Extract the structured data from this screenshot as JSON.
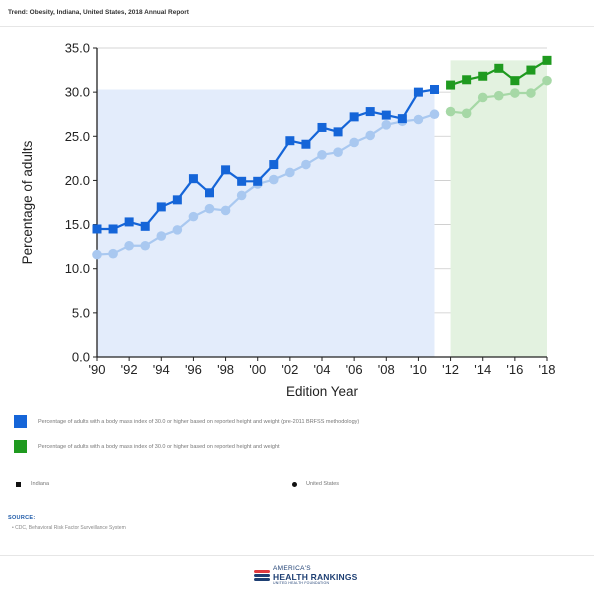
{
  "header": {
    "title": "Trend: Obesity, Indiana, United States, 2018 Annual Report"
  },
  "colors": {
    "blue": "#1565d8",
    "blue_light": "#a9c8f0",
    "blue_fill": "#e3ecfb",
    "green": "#1f9a1f",
    "green_light": "#a6d8a6",
    "green_fill": "#e3f2e0"
  },
  "chart_data": {
    "type": "line",
    "xlabel": "Edition Year",
    "ylabel": "Percentage of adults",
    "ylim": [
      0,
      35
    ],
    "y_ticks": [
      "0.0",
      "5.0",
      "10.0",
      "15.0",
      "20.0",
      "25.0",
      "30.0",
      "35.0"
    ],
    "x_tick_labels": [
      {
        "year": 1990,
        "label": "'90"
      },
      {
        "year": 1992,
        "label": "'92"
      },
      {
        "year": 1994,
        "label": "'94"
      },
      {
        "year": 1996,
        "label": "'96"
      },
      {
        "year": 1998,
        "label": "'98"
      },
      {
        "year": 2000,
        "label": "'00"
      },
      {
        "year": 2002,
        "label": "'02"
      },
      {
        "year": 2004,
        "label": "'04"
      },
      {
        "year": 2006,
        "label": "'06"
      },
      {
        "year": 2008,
        "label": "'08"
      },
      {
        "year": 2010,
        "label": "'10"
      },
      {
        "year": 2012,
        "label": "'12"
      },
      {
        "year": 2014,
        "label": "'14"
      },
      {
        "year": 2016,
        "label": "'16"
      },
      {
        "year": 2018,
        "label": "'18"
      }
    ],
    "xlim": [
      1990,
      2018
    ],
    "segments": [
      {
        "methodology": "Percentage of adults with a body mass index of 30.0 or higher based on reported height and weight (pre-2011 BRFSS methodology)",
        "color": "blue",
        "x": [
          1990,
          1991,
          1992,
          1993,
          1994,
          1995,
          1996,
          1997,
          1998,
          1999,
          2000,
          2001,
          2002,
          2003,
          2004,
          2005,
          2006,
          2007,
          2008,
          2009,
          2010,
          2011
        ],
        "series": [
          {
            "name": "Indiana",
            "marker": "square",
            "values": [
              14.5,
              14.5,
              15.3,
              14.8,
              17.0,
              17.8,
              20.2,
              18.6,
              21.2,
              19.9,
              19.9,
              21.8,
              24.5,
              24.1,
              26.0,
              25.5,
              27.2,
              27.8,
              27.4,
              27.0,
              30.0,
              30.3
            ]
          },
          {
            "name": "United States",
            "marker": "circle",
            "values": [
              11.6,
              11.7,
              12.6,
              12.6,
              13.7,
              14.4,
              15.9,
              16.8,
              16.6,
              18.3,
              19.6,
              20.1,
              20.9,
              21.8,
              22.9,
              23.2,
              24.3,
              25.1,
              26.3,
              26.7,
              26.9,
              27.5
            ]
          }
        ]
      },
      {
        "methodology": "Percentage of adults with a body mass index of 30.0 or higher based on reported height and weight",
        "color": "green",
        "x": [
          2012,
          2013,
          2014,
          2015,
          2016,
          2017,
          2018
        ],
        "series": [
          {
            "name": "Indiana",
            "marker": "square",
            "values": [
              30.8,
              31.4,
              31.8,
              32.7,
              31.3,
              32.5,
              33.6
            ]
          },
          {
            "name": "United States",
            "marker": "circle",
            "values": [
              27.8,
              27.6,
              29.4,
              29.6,
              29.9,
              29.9,
              31.3
            ]
          }
        ]
      }
    ]
  },
  "legend": {
    "methodologies": [
      {
        "label": "Percentage of adults with a body mass index of 30.0 or higher based on reported height and weight (pre-2011 BRFSS methodology)",
        "color": "#1565d8"
      },
      {
        "label": "Percentage of adults with a body mass index of 30.0 or higher based on reported height and weight",
        "color": "#1f9a1f"
      }
    ],
    "markers": {
      "square_label": "Indiana",
      "circle_label": "United States"
    }
  },
  "source": {
    "label": "SOURCE:",
    "item": "• CDC, Behavioral Risk Factor Surveillance System"
  },
  "logo": {
    "top": "AMERICA'S",
    "main": "HEALTH RANKINGS",
    "sub": "UNITED HEALTH FOUNDATION"
  }
}
